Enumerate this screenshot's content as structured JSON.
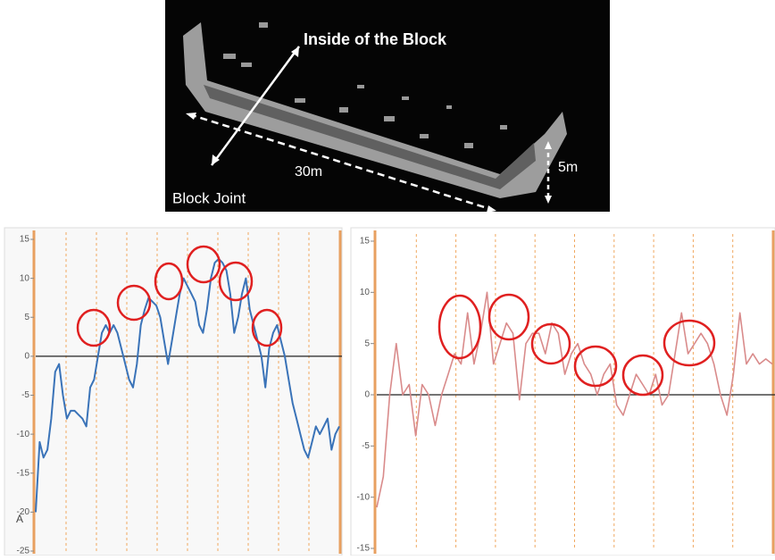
{
  "figure": {
    "labels": [
      "Inside of the Block",
      "30m",
      "5m",
      "Block Joint"
    ]
  },
  "chart_data": [
    {
      "type": "line",
      "color": "#3a73b8",
      "annotations": [
        "A"
      ],
      "ylim": [
        -25,
        15
      ],
      "yticks": [
        -25,
        -20,
        -15,
        -10,
        -5,
        0,
        5,
        10,
        15
      ],
      "values": [
        -20,
        -11,
        -13,
        -12,
        -8,
        -2,
        -1,
        -5,
        -8,
        -7,
        -7,
        -7.5,
        -8,
        -9,
        -4,
        -3,
        0,
        3,
        4,
        3,
        4,
        3,
        1,
        -1,
        -3,
        -4,
        -1,
        4,
        6,
        7.5,
        7,
        6.5,
        5,
        2,
        -1,
        2,
        5,
        8,
        10,
        9,
        8,
        7,
        4,
        3,
        6,
        10,
        12,
        12.5,
        12,
        11,
        8,
        3,
        5,
        8,
        10,
        6,
        4,
        2,
        0,
        -4,
        1,
        3,
        4,
        2,
        0,
        -3,
        -6,
        -8,
        -10,
        -12,
        -13,
        -11,
        -9,
        -10,
        -9,
        -8,
        -12,
        -10,
        -9
      ]
    },
    {
      "type": "line",
      "color": "#d98b8b",
      "ylim": [
        -15,
        15
      ],
      "yticks": [
        -15,
        -10,
        -5,
        0,
        5,
        10,
        15
      ],
      "values": [
        -11,
        -8,
        0,
        5,
        0,
        1,
        -4,
        1,
        0,
        -3,
        0,
        2,
        4,
        3,
        8,
        3,
        6,
        10,
        3,
        5,
        7,
        6,
        -0.5,
        5,
        6,
        6,
        4,
        7,
        6,
        2,
        4,
        5,
        3,
        2,
        0,
        2,
        3,
        -1,
        -2,
        0,
        2,
        1,
        0,
        2,
        -1,
        0,
        4,
        8,
        4,
        5,
        6,
        5,
        3,
        0,
        -2,
        2,
        8,
        3,
        4,
        3,
        3.5,
        3
      ]
    }
  ]
}
